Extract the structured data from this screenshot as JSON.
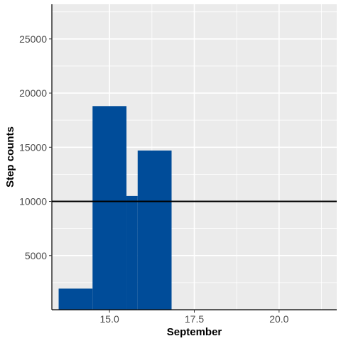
{
  "chart_data": {
    "type": "bar",
    "title": "",
    "xlabel": "September",
    "ylabel": "Step counts",
    "xlim": [
      13.3,
      21.7
    ],
    "ylim": [
      0,
      28200
    ],
    "x_ticks": [
      15.0,
      17.5,
      20.0
    ],
    "x_tick_labels": [
      "15.0",
      "17.5",
      "20.0"
    ],
    "y_ticks": [
      5000,
      10000,
      15000,
      20000,
      25000
    ],
    "y_tick_labels": [
      "5000",
      "10000",
      "15000",
      "20000",
      "25000"
    ],
    "x_minor_ticks": [
      16.25,
      18.75,
      21.25
    ],
    "y_minor_ticks": [
      2500,
      7500,
      12500,
      17500,
      22500,
      27500
    ],
    "bars": [
      {
        "x_start": 13.5,
        "x_end": 14.5,
        "value": 1950
      },
      {
        "x_start": 14.5,
        "x_end": 15.5,
        "value": 18800
      },
      {
        "x_start": 15.5,
        "x_end": 15.83,
        "value": 10500
      },
      {
        "x_start": 15.83,
        "x_end": 16.83,
        "value": 14700
      }
    ],
    "reference_line": {
      "y": 10000,
      "color": "#000000"
    },
    "bar_color": "#004C99",
    "panel_color": "#EBEBEB",
    "grid_color": "#FFFFFF",
    "grid": true,
    "legend": "none"
  }
}
